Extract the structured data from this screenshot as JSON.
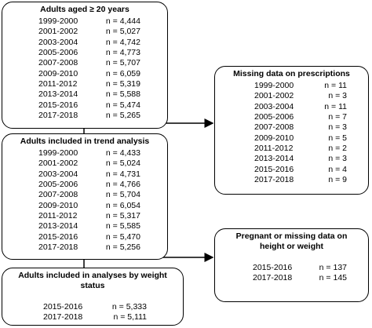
{
  "boxes": [
    {
      "title": "Adults aged ≥ 20 years",
      "rows": [
        {
          "period": "1999-2000",
          "n": "n = 4,444"
        },
        {
          "period": "2001-2002",
          "n": "n = 5,027"
        },
        {
          "period": "2003-2004",
          "n": "n = 4,742"
        },
        {
          "period": "2005-2006",
          "n": "n = 4,773"
        },
        {
          "period": "2007-2008",
          "n": "n = 5,707"
        },
        {
          "period": "2009-2010",
          "n": "n = 6,059"
        },
        {
          "period": "2011-2012",
          "n": "n = 5,319"
        },
        {
          "period": "2013-2014",
          "n": "n = 5,588"
        },
        {
          "period": "2015-2016",
          "n": "n = 5,474"
        },
        {
          "period": "2017-2018",
          "n": "n = 5,265"
        }
      ]
    },
    {
      "title": "Missing data on prescriptions",
      "rows": [
        {
          "period": "1999-2000",
          "n": "n = 11"
        },
        {
          "period": "2001-2002",
          "n": "n = 3"
        },
        {
          "period": "2003-2004",
          "n": "n = 11"
        },
        {
          "period": "2005-2006",
          "n": "n = 7"
        },
        {
          "period": "2007-2008",
          "n": "n = 3"
        },
        {
          "period": "2009-2010",
          "n": "n = 5"
        },
        {
          "period": "2011-2012",
          "n": "n = 2"
        },
        {
          "period": "2013-2014",
          "n": "n = 3"
        },
        {
          "period": "2015-2016",
          "n": "n = 4"
        },
        {
          "period": "2017-2018",
          "n": "n = 9"
        }
      ]
    },
    {
      "title": "Adults included in trend analysis",
      "rows": [
        {
          "period": "1999-2000",
          "n": "n = 4,433"
        },
        {
          "period": "2001-2002",
          "n": "n = 5,024"
        },
        {
          "period": "2003-2004",
          "n": "n = 4,731"
        },
        {
          "period": "2005-2006",
          "n": "n = 4,766"
        },
        {
          "period": "2007-2008",
          "n": "n = 5,704"
        },
        {
          "period": "2009-2010",
          "n": "n = 6,054"
        },
        {
          "period": "2011-2012",
          "n": "n = 5,317"
        },
        {
          "period": "2013-2014",
          "n": "n = 5,585"
        },
        {
          "period": "2015-2016",
          "n": "n = 5,470"
        },
        {
          "period": "2017-2018",
          "n": "n = 5,256"
        }
      ]
    },
    {
      "title": "Pregnant or missing data on height or weight",
      "rows": [
        {
          "period": "2015-2016",
          "n": "n = 137"
        },
        {
          "period": "2017-2018",
          "n": "n = 145"
        }
      ]
    },
    {
      "title": "Adults included in analyses by weight status",
      "rows": [
        {
          "period": "2015-2016",
          "n": "n = 5,333"
        },
        {
          "period": "2017-2018",
          "n": "n = 5,111"
        }
      ]
    }
  ]
}
